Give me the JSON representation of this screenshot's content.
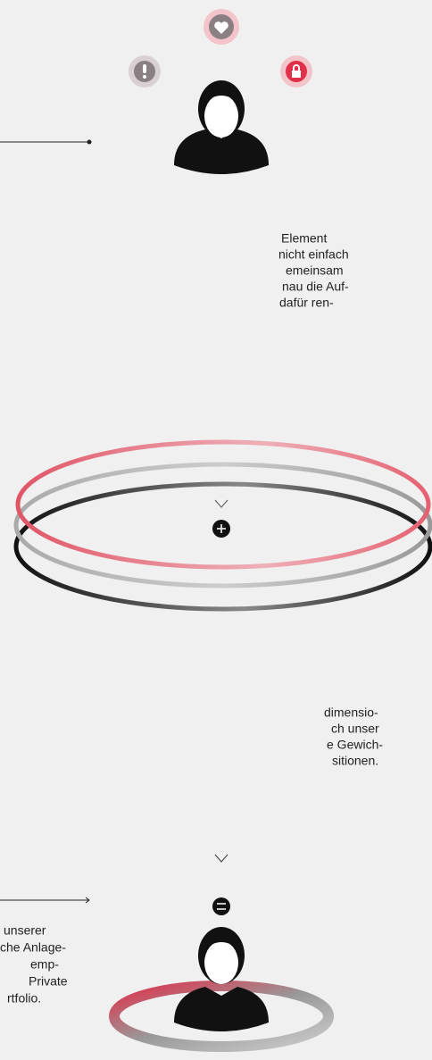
{
  "text_blocks": [
    {
      "lines": [
        "Element",
        "nicht einfach",
        "emeinsam",
        "nau die Auf-",
        "dafür ren-"
      ]
    },
    {
      "lines": [
        "dimensio-",
        "ch unser",
        "e Gewich-",
        "sitionen."
      ]
    },
    {
      "lines": [
        "unserer",
        "che Anlage-",
        "emp-",
        "Private",
        "rtfolio."
      ]
    }
  ]
}
